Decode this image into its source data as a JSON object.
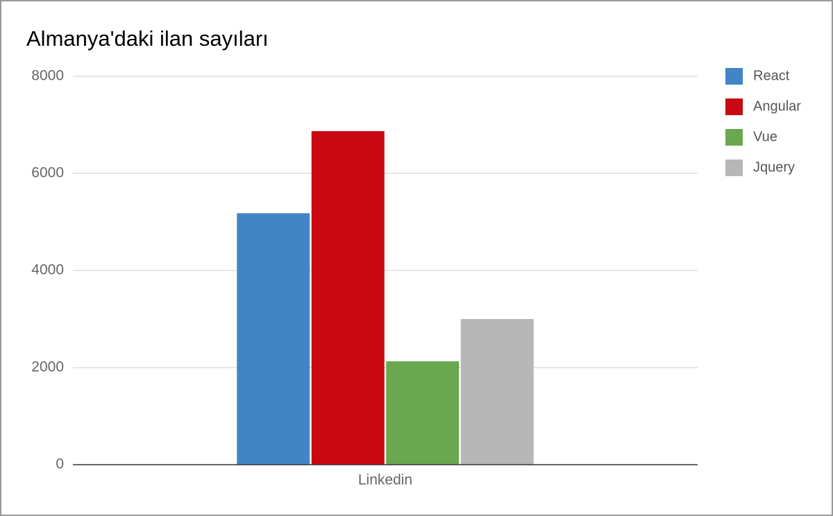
{
  "chart_data": {
    "type": "bar",
    "title": "Almanya'daki ilan sayıları",
    "categories": [
      "Linkedin"
    ],
    "series": [
      {
        "name": "React",
        "color": "#4285c6",
        "values": [
          5180
        ]
      },
      {
        "name": "Angular",
        "color": "#c90812",
        "values": [
          6870
        ]
      },
      {
        "name": "Vue",
        "color": "#6aa84f",
        "values": [
          2130
        ]
      },
      {
        "name": "Jquery",
        "color": "#b7b7b7",
        "values": [
          3000
        ]
      }
    ],
    "ylim": [
      0,
      8000
    ],
    "yticks": [
      0,
      2000,
      4000,
      6000,
      8000
    ],
    "grid": true,
    "legend": "right"
  }
}
